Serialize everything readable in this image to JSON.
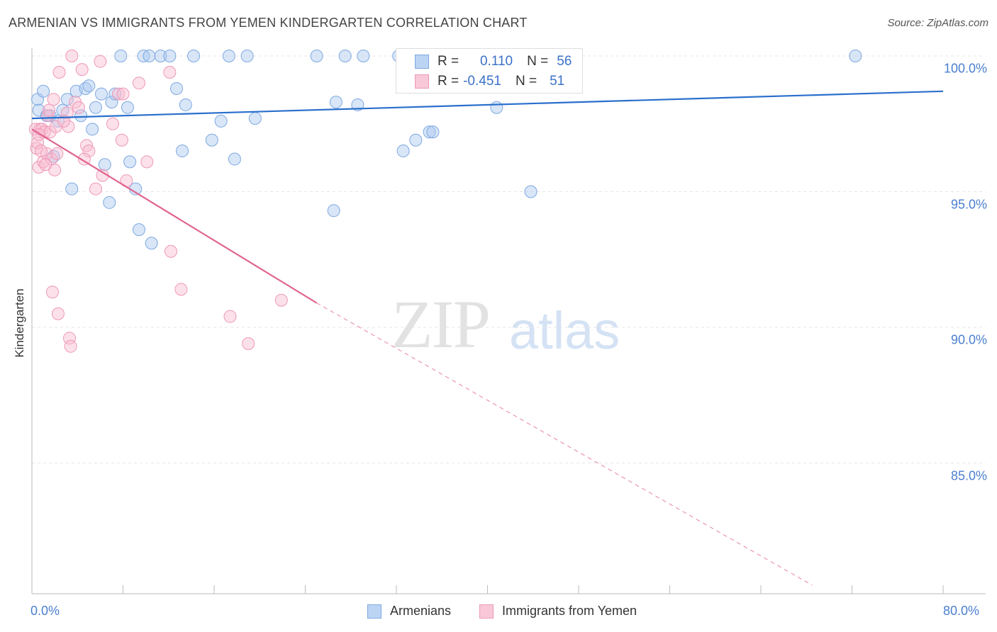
{
  "title": "ARMENIAN VS IMMIGRANTS FROM YEMEN KINDERGARTEN CORRELATION CHART",
  "source": "Source: ZipAtlas.com",
  "watermark": {
    "zip": "ZIP",
    "atlas": "atlas"
  },
  "legend": {
    "rows": [
      {
        "r_label": "R =",
        "r_value": "0.110",
        "n_label": "N =",
        "n_value": "56",
        "color": "#a9c8f0"
      },
      {
        "r_label": "R =",
        "r_value": "-0.451",
        "n_label": "N =",
        "n_value": "51",
        "color": "#f8bcd0"
      }
    ]
  },
  "bottom_legend": {
    "series1": "Armenians",
    "series2": "Immigrants from Yemen"
  },
  "chart_data": {
    "type": "scatter",
    "title": "ARMENIAN VS IMMIGRANTS FROM YEMEN KINDERGARTEN CORRELATION CHART",
    "ylabel": "Kindergarten",
    "xlabel": "",
    "xlim": [
      0,
      80
    ],
    "ylim": [
      80.5,
      100.8
    ],
    "x_tick_labels": [
      "0.0%",
      "80.0%"
    ],
    "y_tick_labels": [
      {
        "value": 100,
        "label": "100.0%"
      },
      {
        "value": 95,
        "label": "95.0%"
      },
      {
        "value": 90,
        "label": "90.0%"
      },
      {
        "value": 85,
        "label": "85.0%"
      }
    ],
    "grid": true,
    "colors": {
      "armenians": "#5b8fd8",
      "yemen": "#f090b0",
      "armenians_line": "#2a6fcc",
      "yemen_line": "#e0648f"
    },
    "series": [
      {
        "name": "Armenians",
        "trend": {
          "x": [
            0,
            80
          ],
          "y": [
            97.7,
            98.7
          ]
        },
        "points": [
          [
            0.5,
            98.4
          ],
          [
            0.6,
            98.0
          ],
          [
            1.0,
            98.7
          ],
          [
            1.3,
            97.8
          ],
          [
            1.6,
            97.8
          ],
          [
            1.9,
            96.3
          ],
          [
            2.3,
            97.6
          ],
          [
            2.7,
            98.0
          ],
          [
            3.1,
            98.4
          ],
          [
            3.5,
            95.1
          ],
          [
            3.9,
            98.7
          ],
          [
            4.3,
            97.8
          ],
          [
            4.7,
            98.8
          ],
          [
            5.0,
            98.9
          ],
          [
            5.3,
            97.3
          ],
          [
            5.6,
            98.1
          ],
          [
            6.1,
            98.6
          ],
          [
            6.4,
            96.0
          ],
          [
            6.8,
            94.6
          ],
          [
            7.0,
            98.3
          ],
          [
            7.3,
            98.6
          ],
          [
            7.8,
            100.0
          ],
          [
            8.4,
            98.1
          ],
          [
            8.6,
            96.1
          ],
          [
            9.1,
            95.1
          ],
          [
            9.4,
            93.6
          ],
          [
            9.8,
            100.0
          ],
          [
            10.3,
            100.0
          ],
          [
            10.5,
            93.1
          ],
          [
            11.3,
            100.0
          ],
          [
            12.1,
            100.0
          ],
          [
            12.7,
            98.8
          ],
          [
            13.2,
            96.5
          ],
          [
            13.5,
            98.2
          ],
          [
            14.2,
            100.0
          ],
          [
            15.8,
            96.9
          ],
          [
            16.6,
            97.6
          ],
          [
            17.3,
            100.0
          ],
          [
            17.8,
            96.2
          ],
          [
            18.9,
            100.0
          ],
          [
            19.6,
            97.7
          ],
          [
            25.0,
            100.0
          ],
          [
            26.5,
            94.3
          ],
          [
            26.7,
            98.3
          ],
          [
            27.5,
            100.0
          ],
          [
            28.6,
            98.2
          ],
          [
            29.1,
            100.0
          ],
          [
            32.2,
            100.0
          ],
          [
            32.6,
            96.5
          ],
          [
            33.7,
            96.9
          ],
          [
            34.9,
            97.2
          ],
          [
            35.2,
            97.2
          ],
          [
            39.7,
            99.5
          ],
          [
            40.8,
            98.1
          ],
          [
            43.8,
            95.0
          ],
          [
            72.3,
            100.0
          ]
        ]
      },
      {
        "name": "Immigrants from Yemen",
        "trend": {
          "x": [
            0,
            25
          ],
          "y": [
            97.3,
            90.9
          ]
        },
        "trend_dashed": {
          "x": [
            25,
            68.5
          ],
          "y": [
            90.9,
            80.5
          ]
        },
        "points": [
          [
            0.3,
            97.3
          ],
          [
            0.4,
            96.6
          ],
          [
            0.5,
            96.8
          ],
          [
            0.6,
            95.9
          ],
          [
            0.7,
            97.3
          ],
          [
            0.9,
            97.3
          ],
          [
            1.0,
            96.1
          ],
          [
            1.1,
            97.2
          ],
          [
            1.3,
            96.4
          ],
          [
            1.4,
            97.8
          ],
          [
            1.5,
            98.0
          ],
          [
            1.6,
            97.2
          ],
          [
            1.7,
            96.2
          ],
          [
            1.8,
            91.3
          ],
          [
            1.9,
            98.4
          ],
          [
            2.0,
            95.8
          ],
          [
            2.1,
            97.4
          ],
          [
            2.2,
            96.4
          ],
          [
            2.3,
            90.5
          ],
          [
            2.4,
            99.4
          ],
          [
            3.1,
            97.9
          ],
          [
            3.2,
            97.4
          ],
          [
            3.3,
            89.6
          ],
          [
            3.4,
            89.3
          ],
          [
            3.5,
            100.0
          ],
          [
            3.8,
            98.3
          ],
          [
            4.1,
            98.1
          ],
          [
            4.4,
            99.5
          ],
          [
            4.8,
            96.7
          ],
          [
            5.0,
            96.5
          ],
          [
            5.6,
            95.1
          ],
          [
            6.0,
            99.8
          ],
          [
            6.2,
            95.6
          ],
          [
            7.1,
            97.5
          ],
          [
            7.6,
            98.6
          ],
          [
            7.9,
            96.9
          ],
          [
            8.0,
            98.6
          ],
          [
            8.3,
            95.4
          ],
          [
            9.4,
            99.0
          ],
          [
            10.1,
            96.1
          ],
          [
            12.1,
            99.4
          ],
          [
            12.2,
            92.8
          ],
          [
            13.1,
            91.4
          ],
          [
            17.4,
            90.4
          ],
          [
            19.0,
            89.4
          ],
          [
            21.9,
            91.0
          ],
          [
            0.6,
            97.1
          ],
          [
            1.2,
            96.0
          ],
          [
            0.8,
            96.5
          ],
          [
            2.8,
            97.6
          ],
          [
            4.6,
            96.2
          ]
        ]
      }
    ]
  }
}
